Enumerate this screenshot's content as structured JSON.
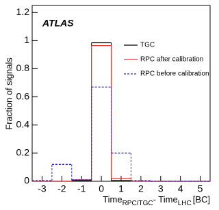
{
  "chart_data": {
    "type": "histogram",
    "annotation": "ATLAS",
    "ylabel": "Fraction of signals",
    "xlabel": {
      "main1": "Time",
      "sub1": "RPC/TGC",
      "main2": "- Time",
      "sub2": "LHC",
      "main3": "[BC]"
    },
    "bins": [
      -3.5,
      -2.5,
      -1.5,
      -0.5,
      0.5,
      1.5,
      2.5,
      3.5,
      4.5,
      5.5
    ],
    "series": [
      {
        "name": "TGC",
        "color": "#000000",
        "dash": "solid",
        "values": [
          0,
          0,
          0.005,
          0.985,
          0.005,
          0,
          0,
          0,
          0
        ]
      },
      {
        "name": "RPC after calibration",
        "color": "#e8352c",
        "dash": "solid",
        "values": [
          0,
          0,
          0.01,
          0.965,
          0.02,
          0,
          0,
          0,
          0
        ]
      },
      {
        "name": "RPC before calibration",
        "color": "#2a2ad0",
        "dash": "dashed",
        "values": [
          0.005,
          0.12,
          0.01,
          0.67,
          0.2,
          0.005,
          0,
          0,
          0
        ]
      }
    ],
    "xlim": [
      -3.5,
      5.5
    ],
    "ylim": [
      0,
      1.25
    ],
    "xticks": [
      -3,
      -2,
      -1,
      0,
      1,
      2,
      3,
      4,
      5
    ],
    "yticks": [
      0,
      0.2,
      0.4,
      0.6,
      0.8,
      1,
      1.2
    ],
    "grid": false,
    "legend": "upper right"
  }
}
